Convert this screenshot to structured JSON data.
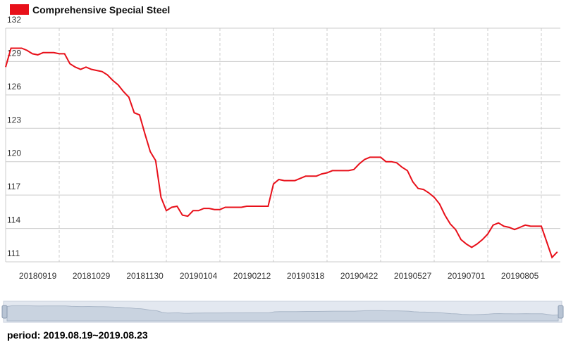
{
  "chart_data": {
    "type": "line",
    "categories": [
      null,
      null,
      null,
      null,
      null,
      null,
      "20180919",
      null,
      null,
      null,
      null,
      null,
      null,
      null,
      null,
      null,
      "20181029",
      null,
      null,
      null,
      null,
      null,
      null,
      null,
      null,
      null,
      "20181130",
      null,
      null,
      null,
      null,
      null,
      null,
      null,
      null,
      null,
      "20190104",
      null,
      null,
      null,
      null,
      null,
      null,
      null,
      null,
      null,
      "20190212",
      null,
      null,
      null,
      null,
      null,
      null,
      null,
      null,
      null,
      "20190318",
      null,
      null,
      null,
      null,
      null,
      null,
      null,
      null,
      null,
      "20190422",
      null,
      null,
      null,
      null,
      null,
      null,
      null,
      null,
      null,
      "20190527",
      null,
      null,
      null,
      null,
      null,
      null,
      null,
      null,
      null,
      "20190701",
      null,
      null,
      null,
      null,
      null,
      null,
      null,
      null,
      null,
      "20190805",
      null,
      null,
      null,
      null,
      null,
      null,
      null
    ],
    "series": [
      {
        "name": "Comprehensive Special Steel",
        "color": "#e8101a",
        "values": [
          128.5,
          130.2,
          130.2,
          130.2,
          130.0,
          129.7,
          129.6,
          129.8,
          129.8,
          129.8,
          129.7,
          129.7,
          128.8,
          128.5,
          128.3,
          128.5,
          128.3,
          128.2,
          128.1,
          127.8,
          127.3,
          126.9,
          126.3,
          125.8,
          124.4,
          124.2,
          122.5,
          120.9,
          120.1,
          116.8,
          115.6,
          115.9,
          116.0,
          115.2,
          115.1,
          115.6,
          115.6,
          115.8,
          115.8,
          115.7,
          115.7,
          115.9,
          115.9,
          115.9,
          115.9,
          116.0,
          116.0,
          116.0,
          116.0,
          116.0,
          118.0,
          118.4,
          118.3,
          118.3,
          118.3,
          118.5,
          118.7,
          118.7,
          118.7,
          118.9,
          119.0,
          119.2,
          119.2,
          119.2,
          119.2,
          119.3,
          119.8,
          120.2,
          120.4,
          120.4,
          120.4,
          120.0,
          120.0,
          119.9,
          119.5,
          119.2,
          118.2,
          117.6,
          117.5,
          117.2,
          116.8,
          116.2,
          115.2,
          114.4,
          113.9,
          113.0,
          112.6,
          112.3,
          112.6,
          113.0,
          113.5,
          114.3,
          114.5,
          114.2,
          114.1,
          113.9,
          114.1,
          114.3,
          114.2,
          114.2,
          114.2,
          112.8,
          111.4,
          111.9
        ]
      }
    ],
    "ylim": [
      111,
      132
    ],
    "yticks": [
      111,
      114,
      117,
      120,
      123,
      126,
      129,
      132
    ],
    "grid": true
  },
  "footer": "period: 2019.08.19~2019.08.23"
}
